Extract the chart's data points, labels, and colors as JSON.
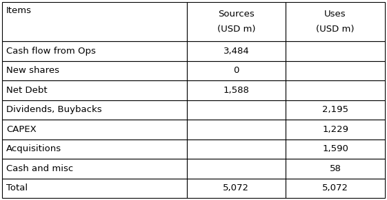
{
  "col_headers": [
    "Items",
    "Sources\n(USD m)",
    "Uses\n(USD m)"
  ],
  "rows": [
    [
      "Cash flow from Ops",
      "3,484",
      ""
    ],
    [
      "New shares",
      "0",
      ""
    ],
    [
      "Net Debt",
      "1,588",
      ""
    ],
    [
      "Dividends, Buybacks",
      "",
      "2,195"
    ],
    [
      "CAPEX",
      "",
      "1,229"
    ],
    [
      "Acquisitions",
      "",
      "1,590"
    ],
    [
      "Cash and misc",
      "",
      "58"
    ]
  ],
  "total_row": [
    "Total",
    "5,072",
    "5,072"
  ],
  "border_color": "#000000",
  "bg_color": "#ffffff",
  "text_color": "#000000",
  "font_size": 9.5,
  "fig_width": 5.61,
  "fig_height": 2.91,
  "dpi": 100
}
